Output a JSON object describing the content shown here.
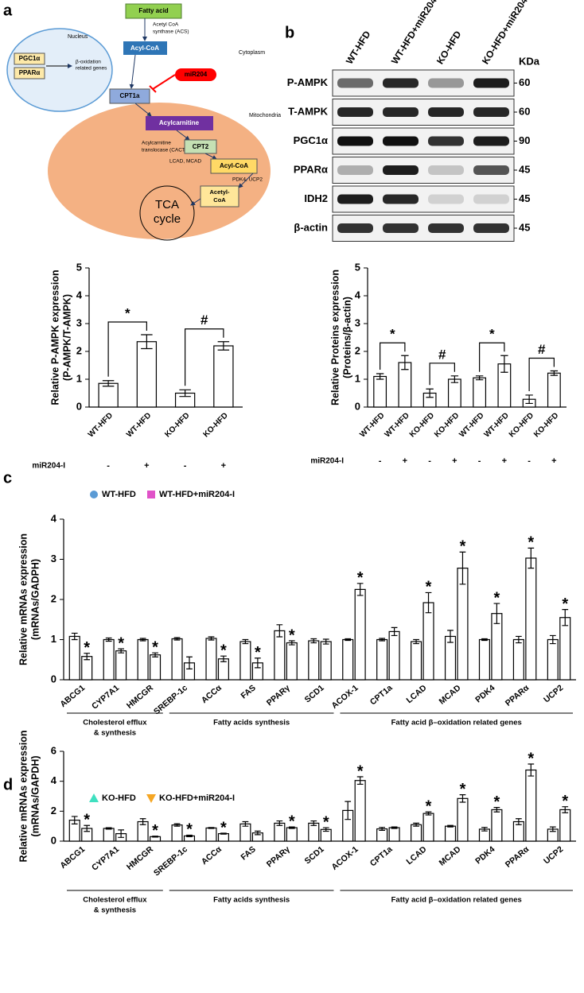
{
  "diagram": {
    "panel": "a",
    "nucleus": "Nucleus",
    "nucleus_genes": [
      "PGC1α",
      "PPARα"
    ],
    "target_genes": [
      "β-oxidation",
      "related genes"
    ],
    "fatty_acid": "Fatty acid",
    "acs": [
      "Acetyl CoA",
      "synthase (ACS)"
    ],
    "cytoplasm": "Cytoplasm",
    "acyl_coa": "Acyl-CoA",
    "mirna": "miR204",
    "cpt1a": "CPT1a",
    "mitochondria": "Mitochondria",
    "acylcarnitine": "Acylcarnitine",
    "cact": [
      "Acylcarnitine",
      "translocase (CACT)"
    ],
    "cpt2": "CPT2",
    "enzymes": "LCAD, MCAD",
    "acyl_coa_mito": "Acyl-CoA",
    "regulators": "PDK4, UCP2",
    "acetyl_coa": [
      "Acetyl-",
      "CoA"
    ],
    "tca": [
      "TCA",
      "cycle"
    ]
  },
  "blot": {
    "panel": "b",
    "lanes": [
      "WT-HFD",
      "WT-HFD+miR204-I",
      "KO-HFD",
      "KO-HFD+miR204-I"
    ],
    "unit": "KDa",
    "rows": [
      {
        "label": "P-AMPK",
        "kda": 60
      },
      {
        "label": "T-AMPK",
        "kda": 60
      },
      {
        "label": "PGC1α",
        "kda": 90
      },
      {
        "label": "PPARα",
        "kda": 45
      },
      {
        "label": "IDH2",
        "kda": 45
      },
      {
        "label": "β-actin",
        "kda": 45
      }
    ]
  },
  "chart_data": [
    {
      "type": "bar",
      "ylabel": [
        "Relative P-AMPK expression",
        "(P-AMPK/T-AMPK)"
      ],
      "categories": [
        "WT-HFD",
        "WT-HFD",
        "KO-HFD",
        "KO-HFD"
      ],
      "values": [
        0.85,
        2.35,
        0.5,
        2.2
      ],
      "errors": [
        0.1,
        0.25,
        0.12,
        0.15
      ],
      "bar_color": "#ffffff",
      "brackets": [
        "*",
        "#"
      ],
      "treatment_label": "miR204-I",
      "treatment": [
        "-",
        "+",
        "-",
        "+"
      ],
      "ylim": [
        0,
        5
      ],
      "yticks": [
        0,
        1,
        2,
        3,
        4,
        5
      ]
    },
    {
      "type": "bar",
      "ylabel": [
        "Relative Proteins expression",
        "(Proteins/β-actin)"
      ],
      "categories": [
        "WT-HFD",
        "WT-HFD",
        "KO-HFD",
        "KO-HFD",
        "WT-HFD",
        "WT-HFD",
        "KO-HFD",
        "KO-HFD"
      ],
      "values": [
        1.1,
        1.6,
        0.5,
        1.0,
        1.05,
        1.55,
        0.28,
        1.22
      ],
      "errors": [
        0.1,
        0.25,
        0.15,
        0.12,
        0.07,
        0.3,
        0.15,
        0.08
      ],
      "bar_color": "#ffffff",
      "brackets": [
        "*",
        "#",
        "*",
        "#"
      ],
      "treatment_label": "miR204-I",
      "treatment": [
        "-",
        "+",
        "-",
        "+",
        "-",
        "+",
        "-",
        "+"
      ],
      "ylim": [
        0,
        5
      ],
      "yticks": [
        0,
        1,
        2,
        3,
        4,
        5
      ]
    },
    {
      "type": "bar",
      "panel": "c",
      "ylabel": [
        "Relative mRNAs expression",
        "(mRNAs/GADPH)"
      ],
      "groups": [
        {
          "label": [
            "Cholesterol efflux",
            "& synthesis"
          ],
          "categories": [
            "ABCG1",
            "CYP7A1",
            "HMCGR"
          ]
        },
        {
          "label": [
            "Fatty acids synthesis"
          ],
          "categories": [
            "SREBP-1c",
            "ACCα",
            "FAS",
            "PPARγ",
            "SCD1"
          ]
        },
        {
          "label": [
            "Fatty acid β–oxidation related genes"
          ],
          "categories": [
            "ACOX-1",
            "CPT1a",
            "LCAD",
            "MCAD",
            "PDK4",
            "PPARα",
            "UCP2"
          ]
        }
      ],
      "bar_color": "#ffffff",
      "legend": "top-left",
      "series": [
        {
          "name": "WT-HFD",
          "color": "#5b9bd5",
          "marker": "circle",
          "values": [
            1.08,
            1.0,
            1.0,
            1.02,
            1.03,
            0.95,
            1.22,
            0.97,
            1.0,
            1.0,
            0.95,
            1.08,
            1.0,
            1.0,
            1.0
          ],
          "errors": [
            0.08,
            0.04,
            0.03,
            0.03,
            0.04,
            0.05,
            0.15,
            0.05,
            0.02,
            0.03,
            0.05,
            0.15,
            0.02,
            0.08,
            0.1
          ]
        },
        {
          "name": "WT-HFD+miR204-I",
          "color": "#e052c8",
          "marker": "square",
          "values": [
            0.58,
            0.72,
            0.62,
            0.42,
            0.52,
            0.42,
            0.92,
            0.95,
            2.25,
            1.2,
            1.92,
            2.78,
            1.65,
            3.03,
            1.55
          ],
          "errors": [
            0.08,
            0.05,
            0.05,
            0.15,
            0.07,
            0.12,
            0.05,
            0.06,
            0.15,
            0.1,
            0.25,
            0.4,
            0.25,
            0.25,
            0.2
          ],
          "significance": [
            "*",
            "*",
            "*",
            null,
            "*",
            "*",
            "*",
            null,
            "*",
            null,
            "*",
            "*",
            "*",
            "*",
            "*"
          ]
        }
      ],
      "ylim": [
        0,
        4
      ],
      "yticks": [
        0,
        1,
        2,
        3,
        4
      ]
    },
    {
      "type": "bar",
      "panel": "d",
      "ylabel": [
        "Relative mRNAs expression",
        "(mRNAs/GAPDH)"
      ],
      "groups": [
        {
          "label": [
            "Cholesterol efflux",
            "& synthesis"
          ],
          "categories": [
            "ABCG1",
            "CYP7A1",
            "HMCGR"
          ]
        },
        {
          "label": [
            "Fatty acids synthesis"
          ],
          "categories": [
            "SREBP-1c",
            "ACCα",
            "FAS",
            "PPARγ",
            "SCD1"
          ]
        },
        {
          "label": [
            "Fatty acid β–oxidation related genes"
          ],
          "categories": [
            "ACOX-1",
            "CPT1a",
            "LCAD",
            "MCAD",
            "PDK4",
            "PPARα",
            "UCP2"
          ]
        }
      ],
      "bar_color": "#ffffff",
      "legend": "top-left",
      "series": [
        {
          "name": "KO-HFD",
          "color": "#3fe0c0",
          "marker": "triangle",
          "values": [
            1.4,
            0.85,
            1.3,
            1.08,
            0.88,
            1.15,
            1.2,
            1.2,
            2.05,
            0.82,
            1.1,
            1.0,
            0.8,
            1.3,
            0.8
          ],
          "errors": [
            0.25,
            0.05,
            0.2,
            0.08,
            0.03,
            0.15,
            0.15,
            0.15,
            0.6,
            0.1,
            0.1,
            0.05,
            0.12,
            0.2,
            0.15
          ]
        },
        {
          "name": "KO-HFD+miR204-I",
          "color": "#f5a623",
          "marker": "triangle-down",
          "values": [
            0.85,
            0.5,
            0.3,
            0.35,
            0.5,
            0.55,
            0.9,
            0.78,
            4.05,
            0.9,
            1.85,
            2.85,
            2.1,
            4.75,
            2.1
          ],
          "errors": [
            0.2,
            0.25,
            0.03,
            0.05,
            0.03,
            0.12,
            0.05,
            0.12,
            0.25,
            0.05,
            0.1,
            0.25,
            0.15,
            0.4,
            0.2
          ],
          "significance": [
            "*",
            null,
            "*",
            "*",
            "*",
            null,
            "*",
            "*",
            "*",
            null,
            "*",
            "*",
            "*",
            "*",
            "*"
          ]
        }
      ],
      "ylim": [
        0,
        6
      ],
      "yticks": [
        0,
        2,
        4,
        6
      ]
    }
  ]
}
